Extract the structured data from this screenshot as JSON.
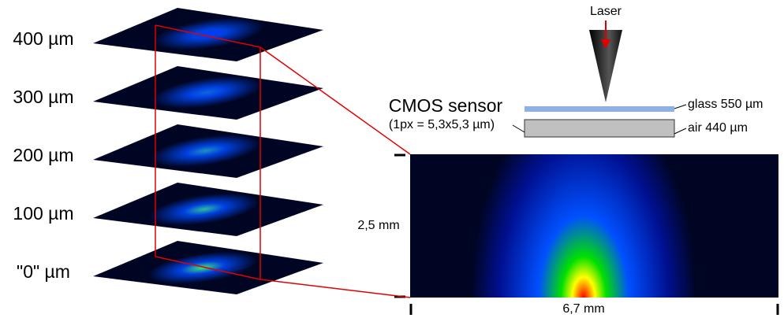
{
  "layers": [
    "400 µm",
    "300 µm",
    "200 µm",
    "100 µm",
    "\"0\" µm"
  ],
  "laser": "Laser",
  "sensor": {
    "title": "CMOS sensor",
    "note": "(1px = 5,3x5,3 µm)"
  },
  "glass": "glass 550 µm",
  "air": "air 440 µm",
  "height": "2,5 mm",
  "width": "6,7 mm"
}
